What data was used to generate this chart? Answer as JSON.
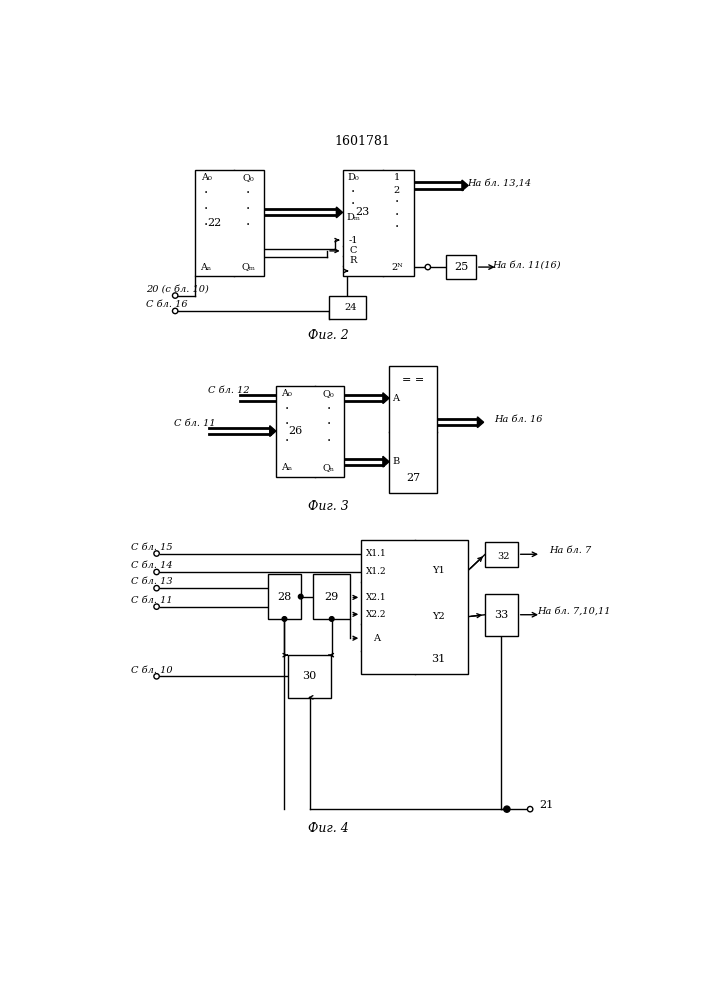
{
  "title": "1601781",
  "bg_color": "#ffffff",
  "line_color": "#000000",
  "fig2_caption": "Фиг. 2",
  "fig3_caption": "Фиг. 3",
  "fig4_caption": "Фиг. 4"
}
